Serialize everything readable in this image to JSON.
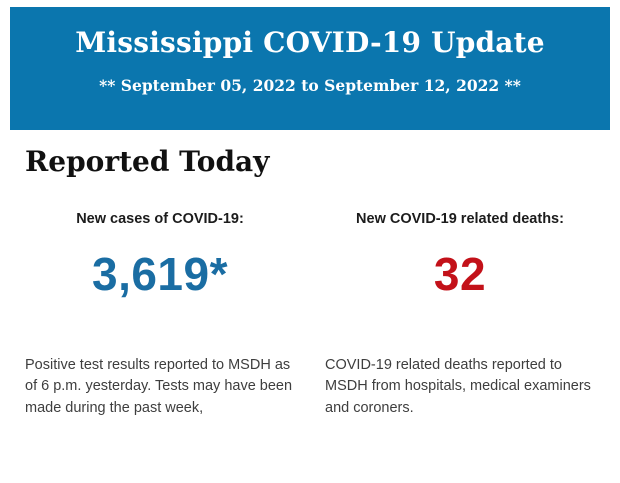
{
  "banner": {
    "title": "Mississippi COVID-19 Update",
    "date_range": "** September 05, 2022 to September 12, 2022 **",
    "background_color": "#0b76ae",
    "text_color": "#ffffff"
  },
  "main": {
    "heading": "Reported Today",
    "stats": [
      {
        "label": "New cases of COVID-19:",
        "value": "3,619*",
        "value_color": "#1a6da3",
        "description": "Positive test results reported to MSDH as of 6 p.m. yesterday. Tests may have been made during the past week,"
      },
      {
        "label": "New COVID-19 related deaths:",
        "value": "32",
        "value_color": "#c31119",
        "description": "COVID-19 related deaths reported to MSDH from hospitals, medical examiners and coroners."
      }
    ]
  }
}
